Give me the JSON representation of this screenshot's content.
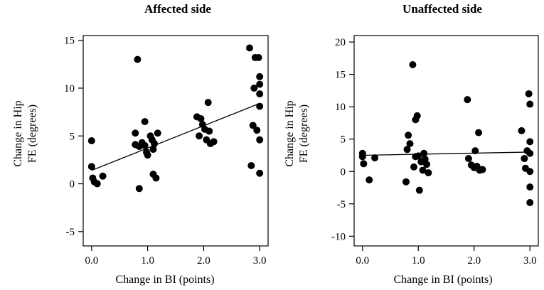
{
  "chart_data": [
    {
      "type": "scatter",
      "title": "Affected side",
      "xlabel": "Change in BI (points)",
      "ylabel": [
        "Change in Hip",
        "FE (degrees)"
      ],
      "xlim": [
        -0.15,
        3.15
      ],
      "ylim": [
        -6.5,
        15.5
      ],
      "xticks": [
        0.0,
        1.0,
        2.0,
        3.0
      ],
      "xtick_labels": [
        "0.0",
        "1.0",
        "2.0",
        "3.0"
      ],
      "yticks": [
        -5,
        0,
        5,
        10,
        15
      ],
      "ytick_labels": [
        "-5",
        "0",
        "5",
        "10",
        "15"
      ],
      "fit_line": {
        "x": [
          0.0,
          3.0
        ],
        "y": [
          1.4,
          8.4
        ]
      },
      "points": [
        {
          "x": 0.0,
          "y": 4.5
        },
        {
          "x": 0.0,
          "y": 1.8
        },
        {
          "x": 0.02,
          "y": 0.6
        },
        {
          "x": 0.05,
          "y": 0.2
        },
        {
          "x": 0.1,
          "y": 0.0
        },
        {
          "x": 0.2,
          "y": 0.8
        },
        {
          "x": 0.82,
          "y": 13.0
        },
        {
          "x": 0.78,
          "y": 5.3
        },
        {
          "x": 0.78,
          "y": 4.1
        },
        {
          "x": 0.85,
          "y": 3.9
        },
        {
          "x": 0.9,
          "y": 4.3
        },
        {
          "x": 0.95,
          "y": 6.5
        },
        {
          "x": 0.95,
          "y": 4.0
        },
        {
          "x": 0.98,
          "y": 3.3
        },
        {
          "x": 1.0,
          "y": 3.0
        },
        {
          "x": 1.05,
          "y": 5.0
        },
        {
          "x": 1.08,
          "y": 4.6
        },
        {
          "x": 1.1,
          "y": 3.6
        },
        {
          "x": 1.1,
          "y": 1.0
        },
        {
          "x": 1.12,
          "y": 4.2
        },
        {
          "x": 1.15,
          "y": 0.6
        },
        {
          "x": 1.18,
          "y": 5.3
        },
        {
          "x": 0.85,
          "y": -0.5
        },
        {
          "x": 1.88,
          "y": 7.0
        },
        {
          "x": 1.92,
          "y": 5.0
        },
        {
          "x": 1.95,
          "y": 6.8
        },
        {
          "x": 1.98,
          "y": 6.2
        },
        {
          "x": 2.02,
          "y": 5.7
        },
        {
          "x": 2.05,
          "y": 4.6
        },
        {
          "x": 2.08,
          "y": 8.5
        },
        {
          "x": 2.1,
          "y": 5.5
        },
        {
          "x": 2.12,
          "y": 4.2
        },
        {
          "x": 2.18,
          "y": 4.4
        },
        {
          "x": 2.82,
          "y": 14.2
        },
        {
          "x": 2.85,
          "y": 1.9
        },
        {
          "x": 2.88,
          "y": 6.1
        },
        {
          "x": 2.9,
          "y": 10.0
        },
        {
          "x": 2.92,
          "y": 13.2
        },
        {
          "x": 2.95,
          "y": 5.6
        },
        {
          "x": 2.98,
          "y": 13.2
        },
        {
          "x": 3.0,
          "y": 11.2
        },
        {
          "x": 3.0,
          "y": 10.4
        },
        {
          "x": 3.0,
          "y": 9.4
        },
        {
          "x": 3.0,
          "y": 8.1
        },
        {
          "x": 3.0,
          "y": 4.6
        },
        {
          "x": 3.0,
          "y": 1.1
        }
      ]
    },
    {
      "type": "scatter",
      "title": "Unaffected side",
      "xlabel": "Change in BI (points)",
      "ylabel": [
        "Change in Hip",
        "FE (degrees)"
      ],
      "xlim": [
        -0.15,
        3.15
      ],
      "ylim": [
        -11.5,
        21.0
      ],
      "xticks": [
        0.0,
        1.0,
        2.0,
        3.0
      ],
      "xtick_labels": [
        "0.0",
        "1.0",
        "2.0",
        "3.0"
      ],
      "yticks": [
        -10,
        -5,
        0,
        5,
        10,
        15,
        20
      ],
      "ytick_labels": [
        "-10",
        "-5",
        "0",
        "5",
        "10",
        "15",
        "20"
      ],
      "fit_line": {
        "x": [
          0.0,
          3.0
        ],
        "y": [
          2.5,
          3.0
        ]
      },
      "points": [
        {
          "x": 0.0,
          "y": 2.8
        },
        {
          "x": 0.0,
          "y": 2.3
        },
        {
          "x": 0.02,
          "y": 1.2
        },
        {
          "x": 0.12,
          "y": -1.3
        },
        {
          "x": 0.22,
          "y": 2.1
        },
        {
          "x": 0.82,
          "y": 5.6
        },
        {
          "x": 0.8,
          "y": 3.4
        },
        {
          "x": 0.85,
          "y": 4.3
        },
        {
          "x": 0.78,
          "y": -1.6
        },
        {
          "x": 0.9,
          "y": 16.5
        },
        {
          "x": 0.95,
          "y": 8.0
        },
        {
          "x": 0.98,
          "y": 8.6
        },
        {
          "x": 0.92,
          "y": 0.7
        },
        {
          "x": 0.95,
          "y": 2.3
        },
        {
          "x": 1.0,
          "y": 2.4
        },
        {
          "x": 1.02,
          "y": -2.9
        },
        {
          "x": 1.05,
          "y": 1.5
        },
        {
          "x": 1.08,
          "y": 0.2
        },
        {
          "x": 1.1,
          "y": 2.8
        },
        {
          "x": 1.12,
          "y": 1.9
        },
        {
          "x": 1.15,
          "y": 1.1
        },
        {
          "x": 1.18,
          "y": -0.2
        },
        {
          "x": 1.88,
          "y": 11.1
        },
        {
          "x": 1.9,
          "y": 2.0
        },
        {
          "x": 1.95,
          "y": 1.0
        },
        {
          "x": 2.0,
          "y": 0.6
        },
        {
          "x": 2.02,
          "y": 3.2
        },
        {
          "x": 2.05,
          "y": 0.8
        },
        {
          "x": 2.08,
          "y": 6.0
        },
        {
          "x": 2.1,
          "y": 0.2
        },
        {
          "x": 2.15,
          "y": 0.3
        },
        {
          "x": 2.85,
          "y": 6.3
        },
        {
          "x": 2.9,
          "y": 2.0
        },
        {
          "x": 2.92,
          "y": 0.5
        },
        {
          "x": 2.95,
          "y": 3.2
        },
        {
          "x": 2.98,
          "y": 12.0
        },
        {
          "x": 3.0,
          "y": 10.4
        },
        {
          "x": 3.0,
          "y": 4.6
        },
        {
          "x": 3.0,
          "y": 2.8
        },
        {
          "x": 3.0,
          "y": 0.0
        },
        {
          "x": 3.0,
          "y": -2.4
        },
        {
          "x": 3.0,
          "y": -4.8
        }
      ]
    }
  ]
}
